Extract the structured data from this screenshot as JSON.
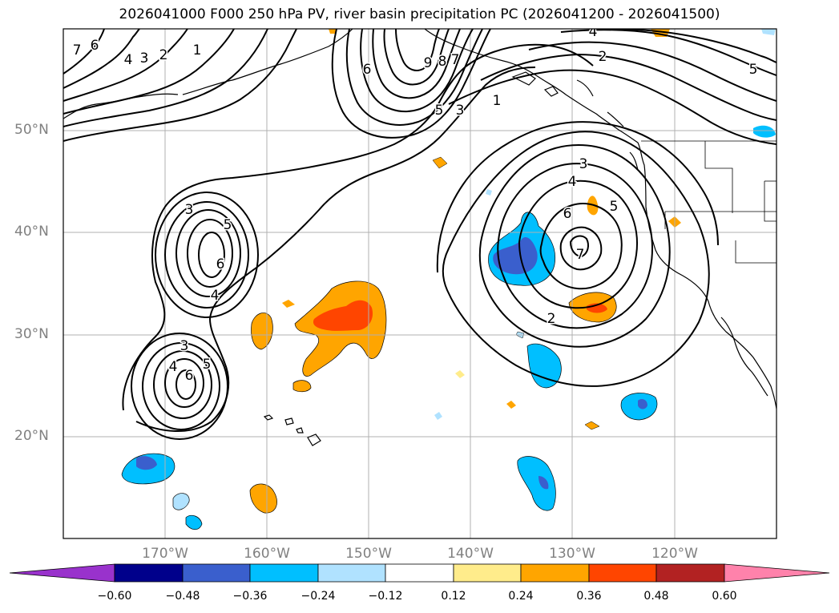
{
  "title": "2026041000 F000 250 hPa PV, river basin precipitation PC (2026041200 - 2026041500)",
  "map": {
    "projection": "equirectangular",
    "lon_range": [
      -180,
      -110
    ],
    "lat_range": [
      10,
      60
    ],
    "lat_ticks": [
      "50°N",
      "40°N",
      "30°N",
      "20°N"
    ],
    "lon_ticks": [
      "170°W",
      "160°W",
      "150°W",
      "140°W",
      "130°W",
      "120°W"
    ],
    "grid": true,
    "background": "#ffffff"
  },
  "pv_contour_labels": {
    "west_low_north": [
      "3",
      "5",
      "6",
      "4"
    ],
    "west_low_south": [
      "3",
      "4",
      "5",
      "6"
    ],
    "northern_ridge": [
      "6",
      "9",
      "8",
      "7",
      "5",
      "3",
      "1"
    ],
    "northwest_corner": [
      "6",
      "7",
      "4",
      "3",
      "2",
      "1"
    ],
    "northeast": [
      "4",
      "2",
      "5"
    ],
    "east_low": [
      "3",
      "4",
      "6",
      "5",
      "7",
      "2"
    ]
  },
  "colorbar": {
    "ticks": [
      "−0.60",
      "−0.48",
      "−0.36",
      "−0.24",
      "−0.12",
      "0.12",
      "0.24",
      "0.36",
      "0.48",
      "0.60"
    ],
    "colors": [
      "#9932cc",
      "#00008b",
      "#3a5fcd",
      "#00bfff",
      "#b0e2ff",
      "#ffffff",
      "#ffec8b",
      "#ffa500",
      "#ff4500",
      "#b22222",
      "#ff82ab"
    ],
    "extend": "both"
  }
}
